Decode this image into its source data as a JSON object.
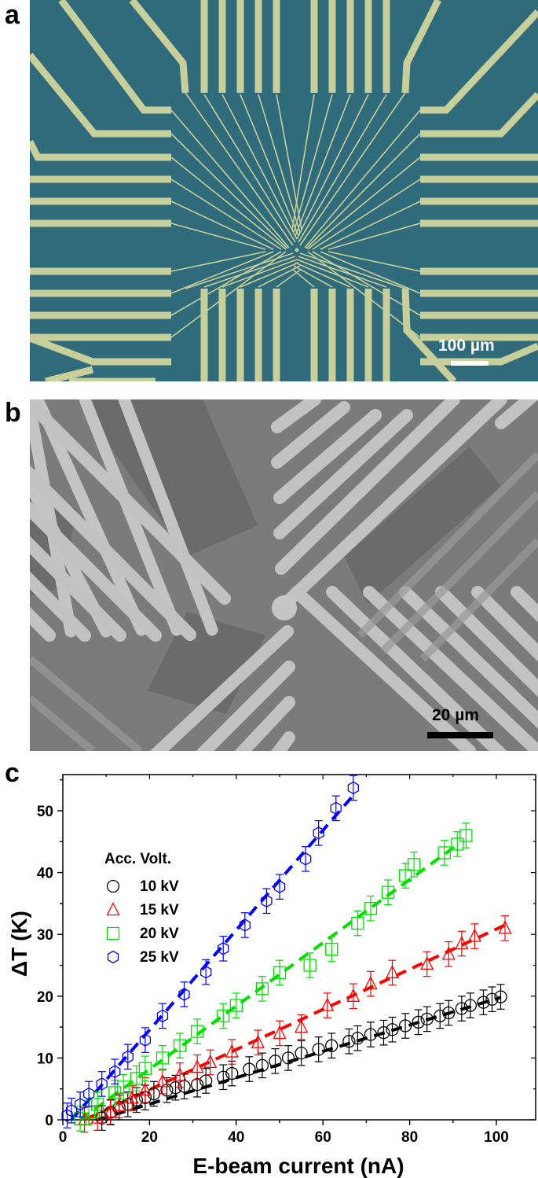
{
  "panels": {
    "a": {
      "label": "a",
      "description": "Optical micrograph of multi-electrode device (gold leads on blue substrate) converging to center",
      "scale_bar": "100 µm",
      "colors": {
        "substrate": "#2f6b7a",
        "electrode": "#c8cf9a",
        "scalebar": "#ffffff"
      }
    },
    "b": {
      "label": "b",
      "description": "SEM image of electrode tips around central circular island",
      "scale_bar": "20 µm",
      "colors": {
        "background": "#7d7d7d",
        "electrode": "#c4c4c4",
        "dark": "#5c5c5c",
        "scalebar": "#000000"
      }
    },
    "c": {
      "label": "c"
    }
  },
  "chart_data": {
    "type": "scatter",
    "title": "",
    "xlabel": "E-beam current (nA)",
    "ylabel": "ΔT (K)",
    "xlim": [
      0,
      105
    ],
    "ylim": [
      0,
      56
    ],
    "xticks": [
      0,
      20,
      40,
      60,
      80,
      100
    ],
    "yticks": [
      0,
      10,
      20,
      30,
      40,
      50
    ],
    "grid": false,
    "legend": {
      "title": "Acc. Volt.",
      "position": "upper-left"
    },
    "error_bar": 2,
    "series": [
      {
        "name": "10 kV",
        "marker": "circle",
        "color": "#000000",
        "x": [
          9,
          11,
          13,
          15,
          17,
          19,
          21,
          24,
          26,
          28,
          31,
          33,
          37,
          39,
          43,
          46,
          49,
          52,
          55,
          59,
          62,
          66,
          68,
          71,
          74,
          76,
          79,
          82,
          84,
          87,
          89,
          92,
          94,
          97,
          99,
          101
        ],
        "y": [
          0.3,
          1.2,
          2.0,
          2.5,
          3.2,
          3.6,
          4.2,
          4.8,
          5.2,
          5.4,
          5.7,
          6.3,
          6.9,
          7.5,
          8.2,
          8.8,
          9.5,
          10.0,
          10.8,
          11.4,
          12.0,
          12.7,
          13.2,
          13.8,
          14.1,
          14.6,
          15.2,
          15.8,
          16.3,
          16.8,
          17.3,
          18.0,
          18.5,
          19.0,
          19.5,
          19.9
        ],
        "fit": {
          "x0": 8,
          "y0": 0,
          "x1": 101,
          "y1": 19.8
        }
      },
      {
        "name": "15 kV",
        "marker": "triangle",
        "color": "#ff0000",
        "x": [
          5,
          8,
          11,
          13,
          16,
          19,
          23,
          27,
          31,
          34,
          39,
          45,
          50,
          55,
          61,
          67,
          71,
          76,
          84,
          89,
          92,
          95,
          102
        ],
        "y": [
          0.0,
          0.3,
          1.3,
          2.3,
          3.5,
          4.8,
          6.2,
          7.2,
          8.5,
          9.3,
          11.0,
          12.5,
          14.0,
          15.0,
          18.5,
          20.0,
          22.0,
          23.8,
          25.2,
          26.8,
          28.5,
          29.7,
          31.0
        ],
        "fit": {
          "x0": 5,
          "y0": 0,
          "x1": 102,
          "y1": 31.5
        }
      },
      {
        "name": "20 kV",
        "marker": "square",
        "color": "#00e000",
        "x": [
          4,
          6,
          8,
          12,
          14,
          17,
          19,
          23,
          27,
          31,
          37,
          40,
          46,
          50,
          57,
          62,
          68,
          71,
          75,
          79,
          81,
          88,
          91,
          93
        ],
        "y": [
          0.2,
          1.2,
          2.5,
          4.4,
          5.3,
          6.7,
          8.3,
          10.0,
          12.0,
          14.3,
          16.8,
          18.5,
          21.2,
          23.8,
          25.0,
          27.6,
          31.8,
          34.2,
          36.8,
          39.5,
          41.3,
          43.2,
          44.6,
          46.0
        ],
        "fit": {
          "x0": 4,
          "y0": 0,
          "x1": 91,
          "y1": 44.5
        }
      },
      {
        "name": "25 kV",
        "marker": "hexagon",
        "color": "#0000ff",
        "x": [
          1,
          2,
          4,
          6,
          9,
          12,
          15,
          19,
          23,
          28,
          33,
          37,
          42,
          47,
          50,
          56,
          59,
          63,
          67
        ],
        "y": [
          0.7,
          1.5,
          2.5,
          4.2,
          5.8,
          7.8,
          10.2,
          12.9,
          16.8,
          20.3,
          23.9,
          27.7,
          31.5,
          35.4,
          37.7,
          42.2,
          46.4,
          50.4,
          53.7
        ],
        "fit": {
          "x0": 2,
          "y0": 0,
          "x1": 67,
          "y1": 52.5
        }
      }
    ]
  }
}
